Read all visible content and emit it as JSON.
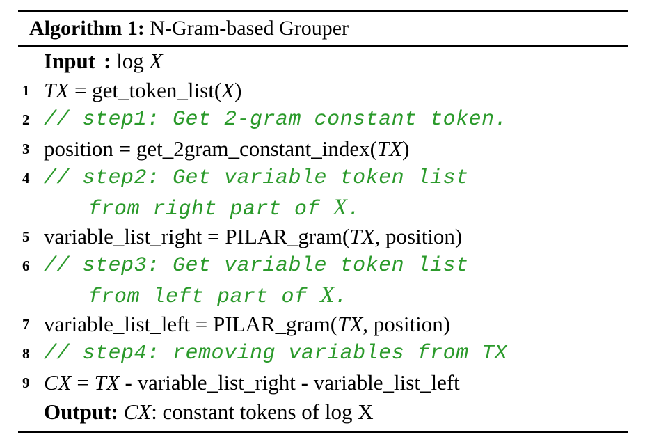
{
  "caption": {
    "label": "Algorithm 1:",
    "title": "N-Gram-based Grouper"
  },
  "input": {
    "keyword": "Input",
    "colon": ":",
    "text": "log",
    "var": "X"
  },
  "lines": [
    {
      "num": "1",
      "parts": [
        "TX",
        " = get_token_list(",
        "X",
        ")"
      ]
    },
    {
      "num": "2",
      "comment": "// step1: Get 2-gram constant token."
    },
    {
      "num": "3",
      "parts": [
        "position = get_2gram_constant_index(",
        "TX",
        ")"
      ]
    },
    {
      "num": "4",
      "comment": "// step2: Get variable token list",
      "cont": [
        "from right part of ",
        "X",
        "."
      ]
    },
    {
      "num": "5",
      "parts": [
        "variable_list_right = PILAR_gram(",
        "TX",
        ", position)"
      ]
    },
    {
      "num": "6",
      "comment": "// step3: Get variable token list",
      "cont": [
        "from left part of ",
        "X",
        "."
      ]
    },
    {
      "num": "7",
      "parts": [
        "variable_list_left = PILAR_gram(",
        "TX",
        ", position)"
      ]
    },
    {
      "num": "8",
      "comment": "// step4: removing variables from TX"
    },
    {
      "num": "9",
      "parts": [
        "CX",
        " = ",
        "TX",
        " - variable_list_right - variable_list_left"
      ]
    }
  ],
  "output": {
    "keyword": "Output:",
    "var": "CX",
    "text": ": constant tokens of log X"
  },
  "colors": {
    "comment": "#2b9a2b",
    "text": "#000000"
  }
}
